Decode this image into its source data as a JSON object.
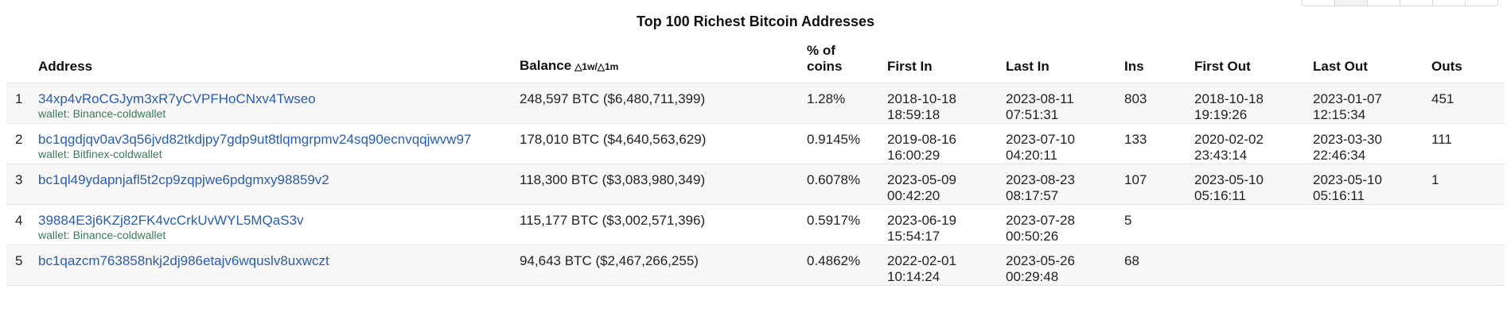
{
  "title": "Top 100 Richest Bitcoin Addresses",
  "headers": {
    "rank": "",
    "address": "Address",
    "balance": "Balance",
    "balance_delta": "△1w/△1m",
    "pct_line1": "% of",
    "pct_line2": "coins",
    "first_in": "First In",
    "last_in": "Last In",
    "ins": "Ins",
    "first_out": "First Out",
    "last_out": "Last Out",
    "outs": "Outs"
  },
  "wallet_prefix": "wallet: ",
  "rows": [
    {
      "rank": "1",
      "address": "34xp4vRoCGJym3xR7yCVPFHoCNxv4Twseo",
      "wallet": "Binance-coldwallet",
      "balance": "248,597 BTC ($6,480,711,399)",
      "pct": "1.28%",
      "first_in_date": "2018-10-18",
      "first_in_time": "18:59:18",
      "last_in_date": "2023-08-11",
      "last_in_time": "07:51:31",
      "ins": "803",
      "first_out_date": "2018-10-18",
      "first_out_time": "19:19:26",
      "last_out_date": "2023-01-07",
      "last_out_time": "12:15:34",
      "outs": "451"
    },
    {
      "rank": "2",
      "address": "bc1qgdjqv0av3q56jvd82tkdjpy7gdp9ut8tlqmgrpmv24sq90ecnvqqjwvw97",
      "wallet": "Bitfinex-coldwallet",
      "balance": "178,010 BTC ($4,640,563,629)",
      "pct": "0.9145%",
      "first_in_date": "2019-08-16",
      "first_in_time": "16:00:29",
      "last_in_date": "2023-07-10",
      "last_in_time": "04:20:11",
      "ins": "133",
      "first_out_date": "2020-02-02",
      "first_out_time": "23:43:14",
      "last_out_date": "2023-03-30",
      "last_out_time": "22:46:34",
      "outs": "111"
    },
    {
      "rank": "3",
      "address": "bc1ql49ydapnjafl5t2cp9zqpjwe6pdgmxy98859v2",
      "wallet": "",
      "balance": "118,300 BTC ($3,083,980,349)",
      "pct": "0.6078%",
      "first_in_date": "2023-05-09",
      "first_in_time": "00:42:20",
      "last_in_date": "2023-08-23",
      "last_in_time": "08:17:57",
      "ins": "107",
      "first_out_date": "2023-05-10",
      "first_out_time": "05:16:11",
      "last_out_date": "2023-05-10",
      "last_out_time": "05:16:11",
      "outs": "1"
    },
    {
      "rank": "4",
      "address": "39884E3j6KZj82FK4vcCrkUvWYL5MQaS3v",
      "wallet": "Binance-coldwallet",
      "balance": "115,177 BTC ($3,002,571,396)",
      "pct": "0.5917%",
      "first_in_date": "2023-06-19",
      "first_in_time": "15:54:17",
      "last_in_date": "2023-07-28",
      "last_in_time": "00:50:26",
      "ins": "5",
      "first_out_date": "",
      "first_out_time": "",
      "last_out_date": "",
      "last_out_time": "",
      "outs": ""
    },
    {
      "rank": "5",
      "address": "bc1qazcm763858nkj2dj986etajv6wquslv8uxwczt",
      "wallet": "",
      "balance": "94,643 BTC ($2,467,266,255)",
      "pct": "0.4862%",
      "first_in_date": "2022-02-01",
      "first_in_time": "10:14:24",
      "last_in_date": "2023-05-26",
      "last_in_time": "00:29:48",
      "ins": "68",
      "first_out_date": "",
      "first_out_time": "",
      "last_out_date": "",
      "last_out_time": "",
      "outs": ""
    }
  ]
}
